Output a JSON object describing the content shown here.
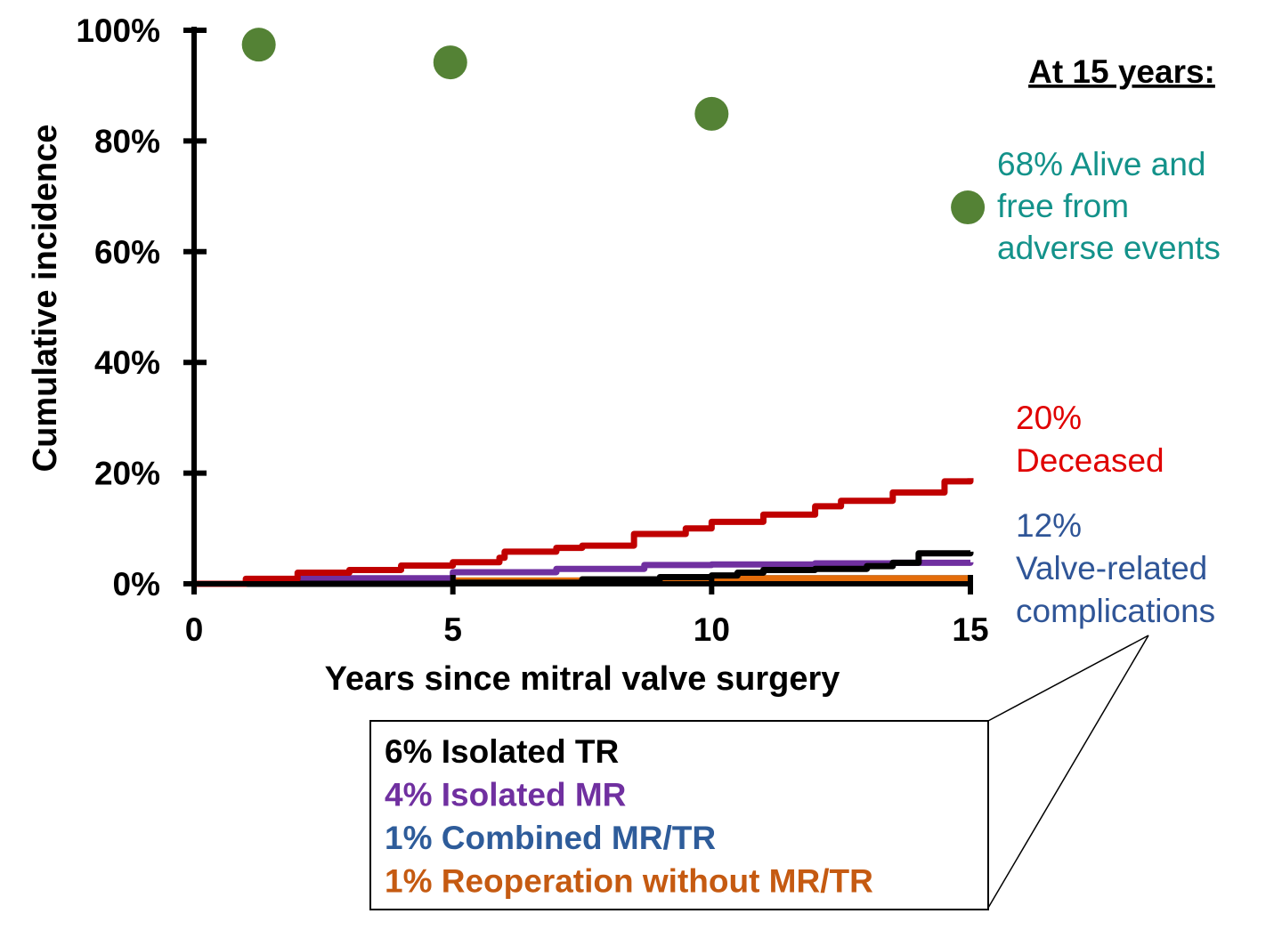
{
  "chart_data": {
    "type": "line",
    "title": "",
    "xlabel": "Years since mitral valve surgery",
    "ylabel": "Cumulative incidence",
    "xlim": [
      0,
      15
    ],
    "ylim": [
      0,
      100
    ],
    "xticks": [
      "0",
      "5",
      "10",
      "15"
    ],
    "yticks": [
      "0%",
      "20%",
      "40%",
      "60%",
      "80%",
      "100%"
    ],
    "grid": false,
    "series": [
      {
        "key": "deceased",
        "color": "#c00000",
        "x": [
          0,
          1,
          2,
          3,
          4,
          5,
          5.9,
          6,
          7,
          7.5,
          8.5,
          9.5,
          10,
          11,
          12,
          12.5,
          13.5,
          14.5,
          15
        ],
        "y": [
          0,
          0.9,
          2,
          2.5,
          3.3,
          3.9,
          4.7,
          5.8,
          6.5,
          6.9,
          9,
          10,
          11.2,
          12.5,
          14,
          15,
          16.5,
          18.5,
          19.1
        ]
      },
      {
        "key": "isolated_mr",
        "color": "#7030a0",
        "x": [
          0,
          2,
          5,
          7,
          8.7,
          10,
          12,
          13.5,
          15
        ],
        "y": [
          0,
          1,
          2.1,
          2.7,
          3.4,
          3.5,
          3.7,
          3.8,
          3.9
        ]
      },
      {
        "key": "isolated_tr",
        "color": "#000000",
        "x": [
          0,
          5,
          7.5,
          9,
          10,
          10.5,
          11,
          12,
          13,
          13.5,
          14,
          15
        ],
        "y": [
          0,
          0.2,
          0.8,
          1.2,
          1.5,
          2,
          2.5,
          2.7,
          3.2,
          3.8,
          5.5,
          5.8
        ]
      },
      {
        "key": "reoperation",
        "color": "#e46c0a",
        "x": [
          0,
          5,
          7.5,
          9,
          10,
          15
        ],
        "y": [
          0,
          0.6,
          0.8,
          0.9,
          1,
          1
        ]
      },
      {
        "key": "combined",
        "color": "#0070c0",
        "x": [
          0,
          5,
          9,
          9.8,
          10,
          15
        ],
        "y": [
          0,
          0.2,
          0.3,
          0.3,
          1,
          1
        ]
      }
    ],
    "points": {
      "name": "Alive and free from adverse events",
      "color": "#548235",
      "x": [
        1.25,
        4.95,
        10,
        14.95
      ],
      "y": [
        97.4,
        94.2,
        84.9,
        68
      ]
    },
    "annotations": {
      "heading": "At 15 years:",
      "alive": [
        "68% Alive and",
        "free from",
        "adverse events"
      ],
      "deceased": [
        "20%",
        "Deceased"
      ],
      "valve": [
        "12%",
        "Valve-related",
        "complications"
      ],
      "breakdown": [
        {
          "text": "6% Isolated TR",
          "color": "#000000"
        },
        {
          "text": "4% Isolated MR",
          "color": "#7030a0"
        },
        {
          "text": "1% Combined MR/TR",
          "color": "#2e5c9a"
        },
        {
          "text": "1% Reoperation without MR/TR",
          "color": "#c55a11"
        }
      ]
    },
    "label_colors": {
      "alive": "#13928a",
      "deceased": "#e00000",
      "valve": "#2f5597"
    }
  }
}
